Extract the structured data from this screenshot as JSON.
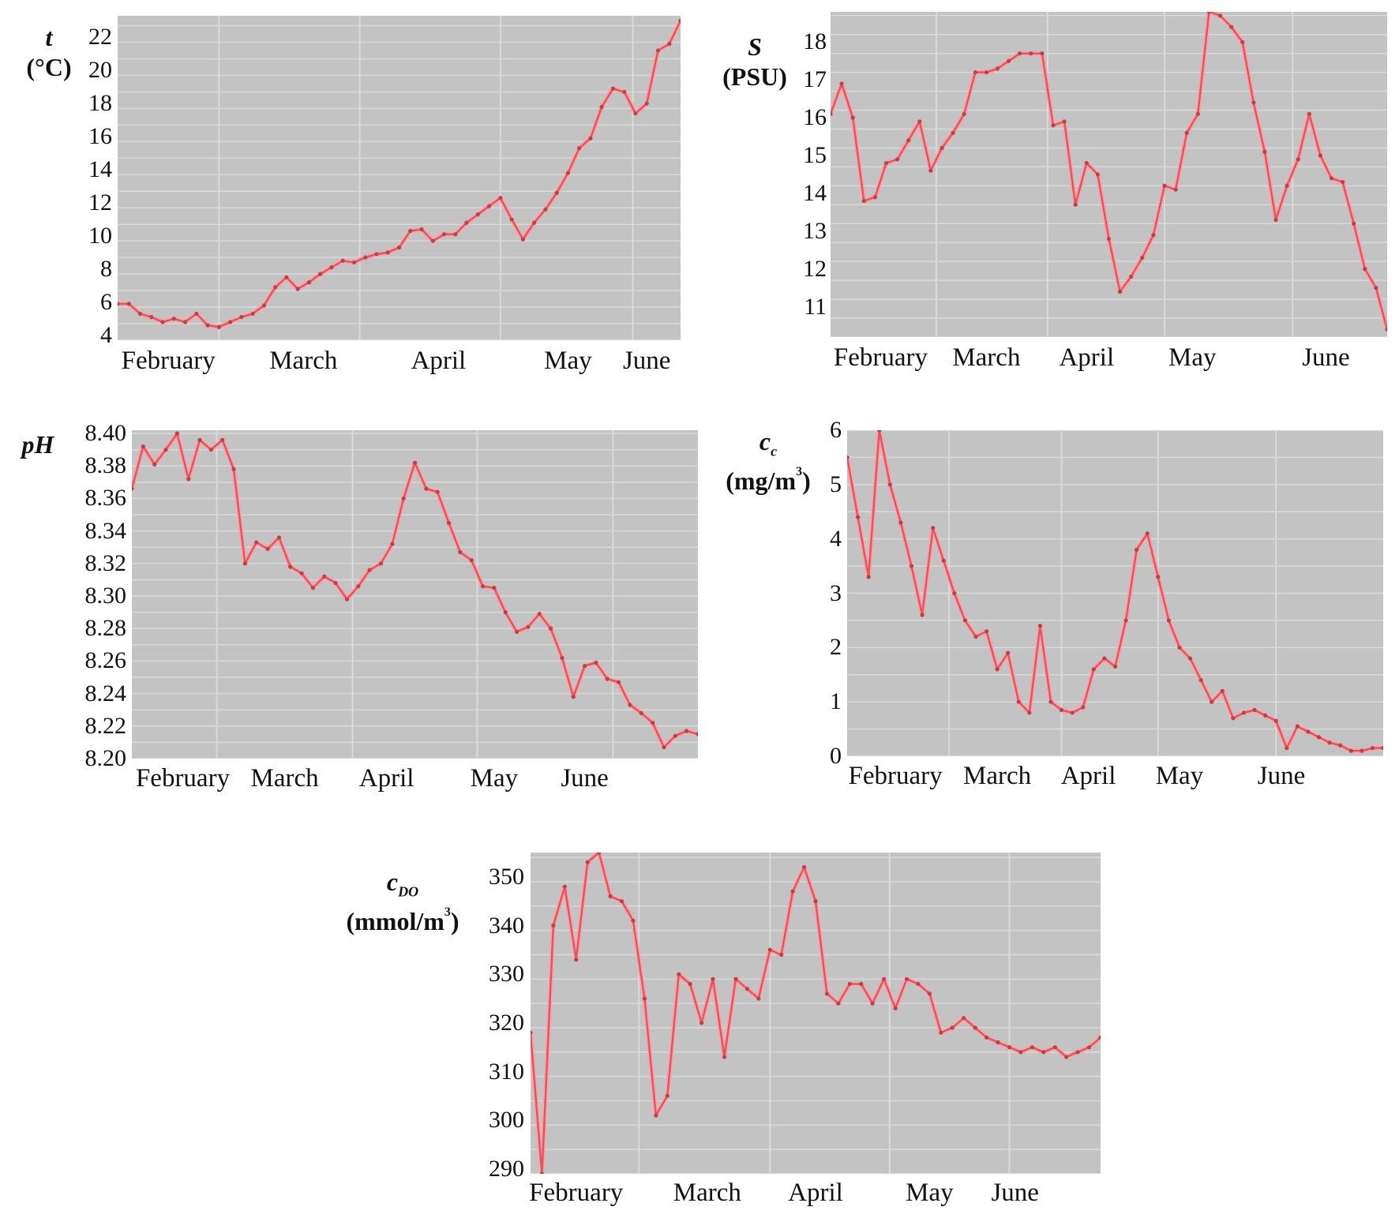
{
  "months": [
    "February",
    "March",
    "April",
    "May",
    "June"
  ],
  "colors": {
    "plot_bg": "#c3c3c3",
    "grid": "#d9d9d9",
    "line": "#e8545e",
    "marker": "#b8454c"
  },
  "panels": {
    "temperature": {
      "symbol": "t",
      "unit": "(°C)",
      "yticks": [
        "22",
        "20",
        "18",
        "16",
        "14",
        "12",
        "10",
        "8",
        "6",
        "4"
      ]
    },
    "salinity": {
      "symbol": "S",
      "unit": "(PSU)",
      "yticks": [
        "18",
        "17",
        "16",
        "15",
        "14",
        "13",
        "12",
        "11"
      ]
    },
    "ph": {
      "symbol": "pH",
      "unit": "",
      "yticks": [
        "8.40",
        "8.38",
        "8.36",
        "8.34",
        "8.32",
        "8.30",
        "8.28",
        "8.26",
        "8.24",
        "8.22",
        "8.20"
      ]
    },
    "chlorophyll": {
      "symbol": "c",
      "subscript": "c",
      "unit_pre": "(mg/m",
      "unit_sup": "3",
      "unit_post": ")",
      "yticks": [
        "6",
        "5",
        "4",
        "3",
        "2",
        "1",
        "0"
      ]
    },
    "oxygen": {
      "symbol": "c",
      "subscript": "DO",
      "unit_pre": "(mmol/m",
      "unit_sup": "3",
      "unit_post": ")",
      "yticks": [
        "350",
        "340",
        "330",
        "320",
        "310",
        "300",
        "290"
      ]
    }
  },
  "chart_data": [
    {
      "type": "line",
      "title": "",
      "xlabel": "",
      "ylabel": "t (°C)",
      "x_tick_labels": [
        "February",
        "March",
        "April",
        "May",
        "June"
      ],
      "ylim": [
        3.7,
        23.3
      ],
      "grid": true,
      "x": [
        0,
        0.02,
        0.04,
        0.06,
        0.08,
        0.1,
        0.12,
        0.14,
        0.16,
        0.18,
        0.2,
        0.22,
        0.24,
        0.26,
        0.28,
        0.3,
        0.32,
        0.34,
        0.36,
        0.38,
        0.4,
        0.42,
        0.44,
        0.46,
        0.48,
        0.5,
        0.52,
        0.54,
        0.56,
        0.58,
        0.6,
        0.62,
        0.64,
        0.66,
        0.68,
        0.7,
        0.72,
        0.74,
        0.76,
        0.78,
        0.8,
        0.82,
        0.84,
        0.86,
        0.88,
        0.9,
        0.92,
        0.94,
        0.96,
        0.98,
        1.0
      ],
      "series": [
        {
          "name": "t",
          "values": [
            5.9,
            5.9,
            5.3,
            5.1,
            4.8,
            5.0,
            4.8,
            5.3,
            4.6,
            4.5,
            4.8,
            5.1,
            5.3,
            5.8,
            6.9,
            7.5,
            6.8,
            7.2,
            7.7,
            8.1,
            8.5,
            8.4,
            8.7,
            8.9,
            9.0,
            9.3,
            10.3,
            10.4,
            9.7,
            10.1,
            10.1,
            10.8,
            11.3,
            11.8,
            12.3,
            11.0,
            9.8,
            10.8,
            11.6,
            12.6,
            13.8,
            15.3,
            15.9,
            17.8,
            18.9,
            18.7,
            17.4,
            18.0,
            21.2,
            21.6,
            23.0
          ]
        }
      ]
    },
    {
      "type": "line",
      "title": "",
      "xlabel": "",
      "ylabel": "S (PSU)",
      "x_tick_labels": [
        "February",
        "March",
        "April",
        "May",
        "June"
      ],
      "ylim": [
        10.2,
        18.8
      ],
      "grid": true,
      "x": [
        0,
        0.02,
        0.04,
        0.06,
        0.08,
        0.1,
        0.12,
        0.14,
        0.16,
        0.18,
        0.2,
        0.22,
        0.24,
        0.26,
        0.28,
        0.3,
        0.32,
        0.34,
        0.36,
        0.38,
        0.4,
        0.42,
        0.44,
        0.46,
        0.48,
        0.5,
        0.52,
        0.54,
        0.56,
        0.58,
        0.6,
        0.62,
        0.64,
        0.66,
        0.68,
        0.7,
        0.72,
        0.74,
        0.76,
        0.78,
        0.8,
        0.82,
        0.84,
        0.86,
        0.88,
        0.9,
        0.92,
        0.94,
        0.96,
        0.98,
        1.0
      ],
      "series": [
        {
          "name": "S",
          "values": [
            16.1,
            16.9,
            16.0,
            13.8,
            13.9,
            14.8,
            14.9,
            15.4,
            15.9,
            14.6,
            15.2,
            15.6,
            16.1,
            17.2,
            17.2,
            17.3,
            17.5,
            17.7,
            17.7,
            17.7,
            15.8,
            15.9,
            13.7,
            14.8,
            14.5,
            12.8,
            11.4,
            11.8,
            12.3,
            12.9,
            14.2,
            14.1,
            15.6,
            16.1,
            18.8,
            18.7,
            18.4,
            18.0,
            16.4,
            15.1,
            13.3,
            14.2,
            14.9,
            16.1,
            15.0,
            14.4,
            14.3,
            13.2,
            12.0,
            11.5,
            10.4
          ]
        }
      ]
    },
    {
      "type": "line",
      "title": "",
      "xlabel": "",
      "ylabel": "pH",
      "x_tick_labels": [
        "February",
        "March",
        "April",
        "May",
        "June"
      ],
      "ylim": [
        8.2,
        8.402
      ],
      "grid": true,
      "x": [
        0,
        0.02,
        0.04,
        0.06,
        0.08,
        0.1,
        0.12,
        0.14,
        0.16,
        0.18,
        0.2,
        0.22,
        0.24,
        0.26,
        0.28,
        0.3,
        0.32,
        0.34,
        0.36,
        0.38,
        0.4,
        0.42,
        0.44,
        0.46,
        0.48,
        0.5,
        0.52,
        0.54,
        0.56,
        0.58,
        0.6,
        0.62,
        0.64,
        0.66,
        0.68,
        0.7,
        0.72,
        0.74,
        0.76,
        0.78,
        0.8,
        0.82,
        0.84,
        0.86,
        0.88,
        0.9,
        0.92,
        0.94,
        0.96,
        0.98,
        1.0
      ],
      "series": [
        {
          "name": "pH",
          "values": [
            8.366,
            8.392,
            8.381,
            8.39,
            8.4,
            8.372,
            8.396,
            8.39,
            8.396,
            8.378,
            8.32,
            8.333,
            8.329,
            8.336,
            8.318,
            8.314,
            8.305,
            8.312,
            8.308,
            8.298,
            8.306,
            8.316,
            8.32,
            8.332,
            8.36,
            8.382,
            8.366,
            8.364,
            8.345,
            8.327,
            8.322,
            8.306,
            8.305,
            8.29,
            8.278,
            8.281,
            8.289,
            8.28,
            8.262,
            8.238,
            8.257,
            8.259,
            8.249,
            8.247,
            8.233,
            8.228,
            8.222,
            8.207,
            8.214,
            8.217,
            8.215
          ]
        }
      ]
    },
    {
      "type": "line",
      "title": "",
      "xlabel": "",
      "ylabel": "c_c (mg/m³)",
      "x_tick_labels": [
        "February",
        "March",
        "April",
        "May",
        "June"
      ],
      "ylim": [
        0,
        6
      ],
      "grid": true,
      "x": [
        0,
        0.02,
        0.04,
        0.06,
        0.08,
        0.1,
        0.12,
        0.14,
        0.16,
        0.18,
        0.2,
        0.22,
        0.24,
        0.26,
        0.28,
        0.3,
        0.32,
        0.34,
        0.36,
        0.38,
        0.4,
        0.42,
        0.44,
        0.46,
        0.48,
        0.5,
        0.52,
        0.54,
        0.56,
        0.58,
        0.6,
        0.62,
        0.64,
        0.66,
        0.68,
        0.7,
        0.72,
        0.74,
        0.76,
        0.78,
        0.8,
        0.82,
        0.84,
        0.86,
        0.88,
        0.9,
        0.92,
        0.94,
        0.96,
        0.98,
        1.0
      ],
      "series": [
        {
          "name": "c_c",
          "values": [
            5.5,
            4.4,
            3.3,
            6.0,
            5.0,
            4.3,
            3.5,
            2.6,
            4.2,
            3.6,
            3.0,
            2.5,
            2.2,
            2.3,
            1.6,
            1.9,
            1.0,
            0.8,
            2.4,
            1.0,
            0.85,
            0.8,
            0.9,
            1.6,
            1.8,
            1.65,
            2.5,
            3.8,
            4.1,
            3.3,
            2.5,
            2.0,
            1.8,
            1.4,
            1.0,
            1.2,
            0.7,
            0.8,
            0.85,
            0.75,
            0.65,
            0.15,
            0.55,
            0.45,
            0.35,
            0.25,
            0.2,
            0.1,
            0.1,
            0.15,
            0.15
          ]
        }
      ]
    },
    {
      "type": "line",
      "title": "",
      "xlabel": "",
      "ylabel": "c_DO (mmol/m³)",
      "x_tick_labels": [
        "February",
        "March",
        "April",
        "May",
        "June"
      ],
      "ylim": [
        289,
        355
      ],
      "grid": true,
      "x": [
        0,
        0.02,
        0.04,
        0.06,
        0.08,
        0.1,
        0.12,
        0.14,
        0.16,
        0.18,
        0.2,
        0.22,
        0.24,
        0.26,
        0.28,
        0.3,
        0.32,
        0.34,
        0.36,
        0.38,
        0.4,
        0.42,
        0.44,
        0.46,
        0.48,
        0.5,
        0.52,
        0.54,
        0.56,
        0.58,
        0.6,
        0.62,
        0.64,
        0.66,
        0.68,
        0.7,
        0.72,
        0.74,
        0.76,
        0.78,
        0.8,
        0.82,
        0.84,
        0.86,
        0.88,
        0.9,
        0.92,
        0.94,
        0.96,
        0.98,
        1.0
      ],
      "series": [
        {
          "name": "c_DO",
          "values": [
            318,
            289,
            340,
            348,
            333,
            353,
            355,
            346,
            345,
            341,
            325,
            301,
            305,
            330,
            328,
            320,
            329,
            313,
            329,
            327,
            325,
            335,
            334,
            347,
            352,
            345,
            326,
            324,
            328,
            328,
            324,
            329,
            323,
            329,
            328,
            326,
            318,
            319,
            321,
            319,
            317,
            316,
            315,
            314,
            315,
            314,
            315,
            313,
            314,
            315,
            317
          ]
        }
      ]
    }
  ]
}
